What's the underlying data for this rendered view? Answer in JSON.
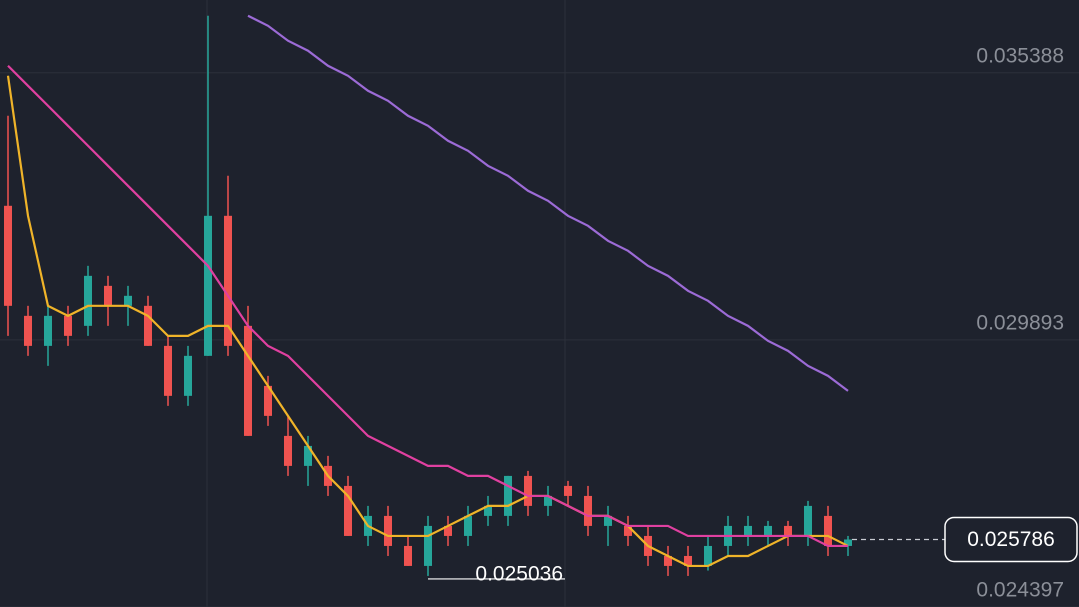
{
  "chart_data": {
    "type": "candlestick",
    "up_color": "#26a69a",
    "down_color": "#ef5350",
    "grid": true,
    "ylim": [
      0.024397,
      0.036885
    ],
    "yticks": [
      0.035388,
      0.029893,
      0.024397
    ],
    "open": [
      0.032651,
      0.030387,
      0.029769,
      0.030387,
      0.030181,
      0.031004,
      0.030593,
      0.030593,
      0.029769,
      0.028741,
      0.029564,
      0.032445,
      0.030181,
      0.028946,
      0.027917,
      0.0273,
      0.0273,
      0.026888,
      0.025859,
      0.026271,
      0.025653,
      0.025242,
      0.026065,
      0.025859,
      0.026271,
      0.026271,
      0.027094,
      0.026477,
      0.026888,
      0.026682,
      0.026065,
      0.026065,
      0.025859,
      0.025447,
      0.025447,
      0.025242,
      0.025653,
      0.025859,
      0.025859,
      0.026065,
      0.025859,
      0.026271,
      0.025653
    ],
    "high": [
      0.034503,
      0.030593,
      0.030593,
      0.030593,
      0.031416,
      0.03121,
      0.031004,
      0.030799,
      0.029975,
      0.029769,
      0.036561,
      0.033268,
      0.030593,
      0.029152,
      0.028329,
      0.027917,
      0.027506,
      0.027094,
      0.026477,
      0.026477,
      0.025859,
      0.026271,
      0.026271,
      0.026477,
      0.026682,
      0.027094,
      0.027197,
      0.026888,
      0.026991,
      0.026888,
      0.026477,
      0.026271,
      0.026065,
      0.025653,
      0.025653,
      0.025859,
      0.026271,
      0.026271,
      0.026168,
      0.026168,
      0.02658,
      0.026477,
      0.025859
    ],
    "low": [
      0.029975,
      0.029564,
      0.029358,
      0.029769,
      0.029975,
      0.030181,
      0.030181,
      0.029769,
      0.028535,
      0.028535,
      0.029564,
      0.029564,
      0.027917,
      0.028123,
      0.027094,
      0.026888,
      0.026682,
      0.025859,
      0.025653,
      0.025447,
      0.025242,
      0.025036,
      0.025653,
      0.025653,
      0.026065,
      0.026065,
      0.026271,
      0.026271,
      0.026477,
      0.025859,
      0.025653,
      0.025653,
      0.025242,
      0.025036,
      0.025036,
      0.025147,
      0.025447,
      0.025653,
      0.025653,
      0.025653,
      0.025653,
      0.025447,
      0.025447
    ],
    "close": [
      0.030593,
      0.029769,
      0.030387,
      0.029975,
      0.03121,
      0.030593,
      0.030799,
      0.029769,
      0.028741,
      0.029564,
      0.032445,
      0.029769,
      0.027917,
      0.028329,
      0.0273,
      0.027711,
      0.026888,
      0.025859,
      0.026271,
      0.025653,
      0.025242,
      0.026065,
      0.025859,
      0.026271,
      0.026477,
      0.027094,
      0.026477,
      0.026682,
      0.026682,
      0.026065,
      0.026271,
      0.025859,
      0.025447,
      0.025242,
      0.025242,
      0.025653,
      0.026065,
      0.026065,
      0.026065,
      0.025859,
      0.026477,
      0.025653,
      0.025786
    ],
    "series": [
      {
        "color": "#f0b429",
        "values": [
          0.035326,
          0.032445,
          0.030593,
          0.030387,
          0.030593,
          0.030593,
          0.030593,
          0.030387,
          0.029975,
          0.029975,
          0.030181,
          0.030181,
          0.029564,
          0.028946,
          0.028329,
          0.027711,
          0.027094,
          0.026682,
          0.026065,
          0.025859,
          0.025859,
          0.025859,
          0.026065,
          0.026271,
          0.026477,
          0.026477,
          0.026682,
          0.026682,
          0.026477,
          0.026271,
          0.026271,
          0.026065,
          0.025653,
          0.025447,
          0.025242,
          0.025242,
          0.025447,
          0.025447,
          0.025653,
          0.025859,
          0.025859,
          0.025859,
          0.025653
        ]
      },
      {
        "color": "#e040a0",
        "values": [
          0.035532,
          0.03512,
          0.034709,
          0.034297,
          0.033886,
          0.033474,
          0.033062,
          0.032651,
          0.032239,
          0.031828,
          0.031416,
          0.030799,
          0.030181,
          0.029769,
          0.029564,
          0.029152,
          0.028741,
          0.028329,
          0.027917,
          0.027711,
          0.027506,
          0.0273,
          0.0273,
          0.027094,
          0.027094,
          0.026888,
          0.026682,
          0.026682,
          0.026477,
          0.026271,
          0.026271,
          0.026065,
          0.026065,
          0.026065,
          0.025859,
          0.025859,
          0.025859,
          0.025859,
          0.025859,
          0.025859,
          0.025859,
          0.025653,
          0.025653
        ]
      },
      {
        "color": "#9c6bd6",
        "values": [
          null,
          null,
          null,
          null,
          null,
          null,
          null,
          null,
          null,
          null,
          null,
          null,
          0.036561,
          0.036355,
          0.036047,
          0.035841,
          0.035532,
          0.035326,
          0.035018,
          0.034812,
          0.034503,
          0.034297,
          0.033989,
          0.033783,
          0.033474,
          0.033268,
          0.03296,
          0.032754,
          0.032445,
          0.032239,
          0.031931,
          0.031725,
          0.031416,
          0.03121,
          0.030902,
          0.030696,
          0.030387,
          0.030181,
          0.029873,
          0.029667,
          0.029358,
          0.029152,
          0.028844
        ]
      }
    ]
  }
}
